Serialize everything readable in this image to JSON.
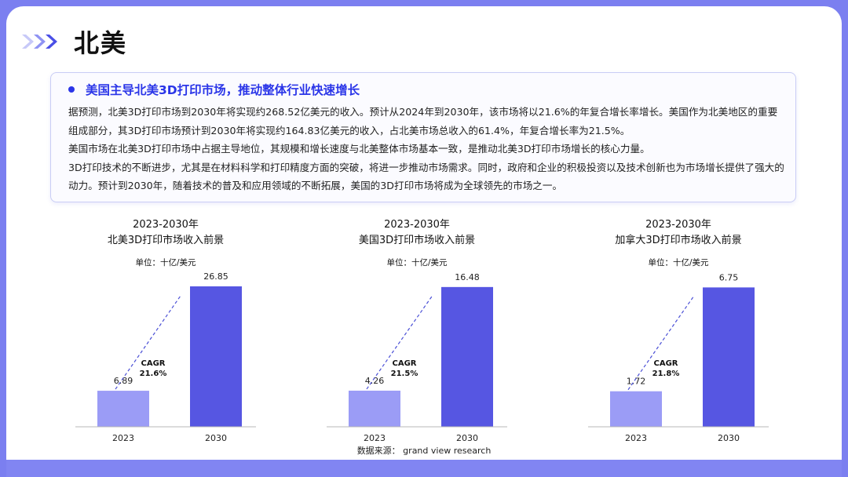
{
  "page": {
    "title": "北美",
    "source": "数据来源：  grand view research"
  },
  "card": {
    "title": "美国主导北美3D打印市场，推动整体行业快速增长",
    "paragraphs": [
      "据预测，北美3D打印市场到2030年将实现约268.52亿美元的收入。预计从2024年到2030年，该市场将以21.6%的年复合增长率增长。美国作为北美地区的重要组成部分，其3D打印市场预计到2030年将实现约164.83亿美元的收入，占北美市场总收入的61.4%，年复合增长率为21.5%。",
      "美国市场在北美3D打印市场中占据主导地位，其规模和增长速度与北美整体市场基本一致，是推动北美3D打印市场增长的核心力量。",
      "3D打印技术的不断进步，尤其是在材料科学和打印精度方面的突破，将进一步推动市场需求。同时，政府和企业的积极投资以及技术创新也为市场增长提供了强大的动力。预计到2030年，随着技术的普及和应用领域的不断拓展，美国的3D打印市场将成为全球领先的市场之一。"
    ]
  },
  "colors": {
    "accent": "#2a35e8",
    "bar_light": "#9b9cf6",
    "bar_dark": "#5656e2",
    "frame": "#7b7ff0"
  },
  "chart_data": [
    {
      "type": "bar",
      "title": "2023-2030年",
      "subtitle": "北美3D打印市场收入前景",
      "unit": "单位：十亿/美元",
      "categories": [
        "2023",
        "2030"
      ],
      "values": [
        6.89,
        26.85
      ],
      "value_labels": [
        "6.89",
        "26.85"
      ],
      "annotation": [
        "CAGR",
        "21.6%"
      ],
      "ylim": [
        0,
        30
      ]
    },
    {
      "type": "bar",
      "title": "2023-2030年",
      "subtitle": "美国3D打印市场收入前景",
      "unit": "单位：十亿/美元",
      "categories": [
        "2023",
        "2030"
      ],
      "values": [
        4.26,
        16.48
      ],
      "value_labels": [
        "4.26",
        "16.48"
      ],
      "annotation": [
        "CAGR",
        "21.5%"
      ],
      "ylim": [
        0,
        18.5
      ]
    },
    {
      "type": "bar",
      "title": "2023-2030年",
      "subtitle": "加拿大3D打印市场收入前景",
      "unit": "单位：十亿/美元",
      "categories": [
        "2023",
        "2030"
      ],
      "values": [
        1.72,
        6.75
      ],
      "value_labels": [
        "1.72",
        "6.75"
      ],
      "annotation": [
        "CAGR",
        "21.8%"
      ],
      "ylim": [
        0,
        7.6
      ]
    }
  ]
}
